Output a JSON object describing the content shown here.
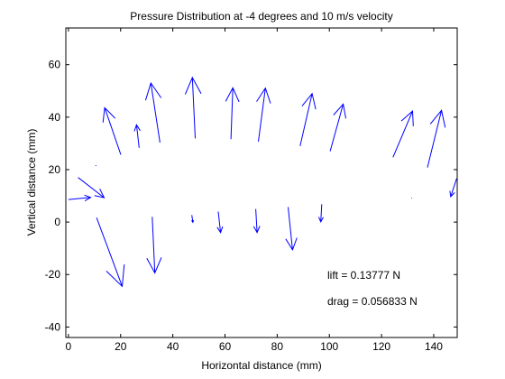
{
  "chart_data": {
    "type": "quiver",
    "title": "Pressure Distribution at -4 degrees and 10 m/s velocity",
    "xlabel": "Horizontal distance (mm)",
    "ylabel": "Vertical distance (mm)",
    "xlim": [
      -1,
      149
    ],
    "ylim": [
      -44,
      74
    ],
    "xticks": [
      0,
      20,
      40,
      60,
      80,
      100,
      120,
      140
    ],
    "yticks": [
      -40,
      -20,
      0,
      20,
      40,
      60
    ],
    "grid": false,
    "arrow_color": "#0000ff",
    "annotations": [
      {
        "text": "lift = 0.13777 N",
        "x": 100,
        "y": -20
      },
      {
        "text": "drag = 0.056833 N",
        "x": 100,
        "y": -30
      }
    ],
    "arrows": [
      {
        "x": 0,
        "y": 8.6,
        "u": 8.5,
        "v": 0.8
      },
      {
        "x": 3.7,
        "y": 17,
        "u": 10,
        "v": -7.7
      },
      {
        "x": 10.4,
        "y": 21.7,
        "u": 0.2,
        "v": -0.3
      },
      {
        "x": 20.1,
        "y": 25.7,
        "u": -6.2,
        "v": 17.9
      },
      {
        "x": 10.8,
        "y": 1.7,
        "u": 9.8,
        "v": -26.2
      },
      {
        "x": 27.1,
        "y": 28.3,
        "u": -1.0,
        "v": 8.8
      },
      {
        "x": 35.1,
        "y": 30.3,
        "u": -3.5,
        "v": 22.7
      },
      {
        "x": 32.1,
        "y": 2.0,
        "u": 1.0,
        "v": -21.4
      },
      {
        "x": 48.6,
        "y": 31.9,
        "u": -1.1,
        "v": 23.2
      },
      {
        "x": 47.3,
        "y": 2.7,
        "u": 0.4,
        "v": -2.8
      },
      {
        "x": 62.3,
        "y": 31.6,
        "u": 0.7,
        "v": 19.6
      },
      {
        "x": 57.4,
        "y": 4.0,
        "u": 0.9,
        "v": -8.0
      },
      {
        "x": 72.8,
        "y": 30.7,
        "u": 2.7,
        "v": 20.4
      },
      {
        "x": 71.8,
        "y": 5.0,
        "u": 0.5,
        "v": -9.0
      },
      {
        "x": 88.8,
        "y": 29.0,
        "u": 4.6,
        "v": 20.0
      },
      {
        "x": 84.2,
        "y": 5.7,
        "u": 1.7,
        "v": -16.3
      },
      {
        "x": 100.3,
        "y": 27.0,
        "u": 5.0,
        "v": 18.0
      },
      {
        "x": 97.1,
        "y": 6.8,
        "u": -0.4,
        "v": -6.7
      },
      {
        "x": 124.4,
        "y": 24.7,
        "u": 7.5,
        "v": 17.6
      },
      {
        "x": 131.6,
        "y": 9.1,
        "u": -0.2,
        "v": 0.1
      },
      {
        "x": 137.6,
        "y": 20.8,
        "u": 5.4,
        "v": 21.8
      },
      {
        "x": 148.8,
        "y": 16.6,
        "u": -2.3,
        "v": -6.9
      }
    ]
  }
}
